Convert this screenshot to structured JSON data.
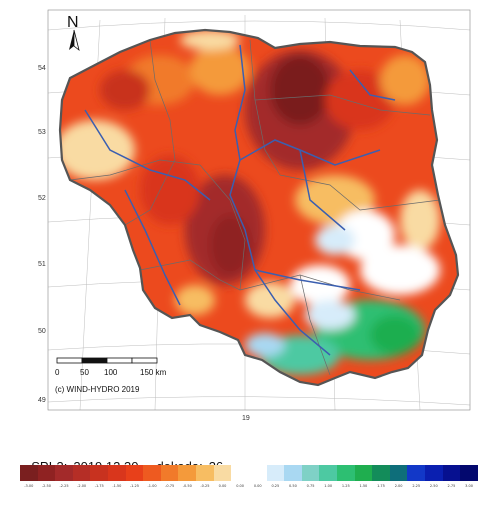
{
  "map": {
    "north_label": "N",
    "latitudes": [
      "54",
      "53",
      "52",
      "51",
      "50",
      "49"
    ],
    "longitude": "19",
    "scale_ticks": [
      "0",
      "50",
      "100",
      "150 km"
    ],
    "credit": "(c) WIND-HYDRO 2019"
  },
  "legend": {
    "index_label": "SPI-3:",
    "date": "2019.12.30",
    "dekada_label": "dekada:",
    "dekada_value": "36",
    "classes": [
      {
        "color": "#7a1f1f",
        "label": "-3.00"
      },
      {
        "color": "#8f2222",
        "label": "-2.50"
      },
      {
        "color": "#a32a2a",
        "label": "-2.25"
      },
      {
        "color": "#b52e26",
        "label": "-2.00"
      },
      {
        "color": "#c8321f",
        "label": "-1.75"
      },
      {
        "color": "#d9361c",
        "label": "-1.50"
      },
      {
        "color": "#e8401a",
        "label": "-1.25"
      },
      {
        "color": "#ee5a20",
        "label": "-1.00"
      },
      {
        "color": "#f17a2a",
        "label": "-0.75"
      },
      {
        "color": "#f49a3b",
        "label": "-0.50"
      },
      {
        "color": "#f7bd62",
        "label": "-0.25"
      },
      {
        "color": "#f9dba3",
        "label": "0.00"
      },
      {
        "color": "#ffffff",
        "label": "0.00"
      },
      {
        "color": "#ffffff",
        "label": "0.00"
      },
      {
        "color": "#d7ecfa",
        "label": "0.25"
      },
      {
        "color": "#a9d8f2",
        "label": "0.50"
      },
      {
        "color": "#7fd1c6",
        "label": "0.75"
      },
      {
        "color": "#4dc9a2",
        "label": "1.00"
      },
      {
        "color": "#2dbf72",
        "label": "1.25"
      },
      {
        "color": "#1fae4f",
        "label": "1.50"
      },
      {
        "color": "#138c5a",
        "label": "1.75"
      },
      {
        "color": "#0e6e7a",
        "label": "2.00"
      },
      {
        "color": "#1238c8",
        "label": "2.25"
      },
      {
        "color": "#0a1fb0",
        "label": "2.50"
      },
      {
        "color": "#061090",
        "label": "2.75"
      },
      {
        "color": "#03086e",
        "label": "3.00"
      }
    ]
  }
}
